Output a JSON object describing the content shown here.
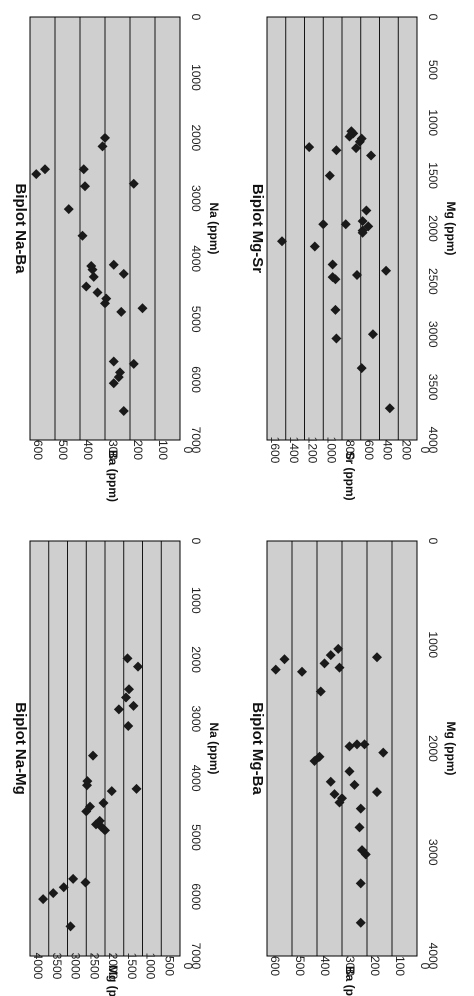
{
  "chart_data": [
    {
      "type": "scatter",
      "title": "Biplot Na-Mg",
      "xlabel": "Na (ppm)",
      "ylabel": "Mg (ppm)",
      "xlim": [
        0,
        7000
      ],
      "ylim": [
        0,
        4000
      ],
      "xticks": [
        "0",
        "1000",
        "2000",
        "3000",
        "4000",
        "5000",
        "6000",
        "7000"
      ],
      "yticks": [
        "0",
        "500",
        "1000",
        "1500",
        "2000",
        "2500",
        "3000",
        "3500",
        "4000"
      ],
      "grid": true,
      "points": [
        {
          "x": 6040,
          "y": 3650
        },
        {
          "x": 5940,
          "y": 3380
        },
        {
          "x": 6500,
          "y": 2920
        },
        {
          "x": 5840,
          "y": 3100
        },
        {
          "x": 5700,
          "y": 2850
        },
        {
          "x": 5760,
          "y": 2520
        },
        {
          "x": 4880,
          "y": 2000
        },
        {
          "x": 4820,
          "y": 2100
        },
        {
          "x": 4780,
          "y": 2240
        },
        {
          "x": 4720,
          "y": 2140
        },
        {
          "x": 4560,
          "y": 2500
        },
        {
          "x": 4480,
          "y": 2400
        },
        {
          "x": 4420,
          "y": 2040
        },
        {
          "x": 4220,
          "y": 1820
        },
        {
          "x": 4180,
          "y": 1160
        },
        {
          "x": 4120,
          "y": 2480
        },
        {
          "x": 4050,
          "y": 2470
        },
        {
          "x": 3620,
          "y": 2320
        },
        {
          "x": 3120,
          "y": 1380
        },
        {
          "x": 2840,
          "y": 1630
        },
        {
          "x": 2780,
          "y": 1240
        },
        {
          "x": 2640,
          "y": 1440
        },
        {
          "x": 2500,
          "y": 1360
        },
        {
          "x": 2120,
          "y": 1120
        },
        {
          "x": 1980,
          "y": 1400
        }
      ]
    },
    {
      "type": "scatter",
      "title": "Biplot Na-Ba",
      "xlabel": "Na (ppm)",
      "ylabel": "Ba (ppm)",
      "xlim": [
        0,
        7000
      ],
      "ylim": [
        0,
        600
      ],
      "xticks": [
        "0",
        "1000",
        "2000",
        "3000",
        "4000",
        "5000",
        "6000",
        "7000"
      ],
      "yticks": [
        "0",
        "100",
        "200",
        "300",
        "400",
        "500",
        "600"
      ],
      "grid": true,
      "points": [
        {
          "x": 6520,
          "y": 225
        },
        {
          "x": 6060,
          "y": 265
        },
        {
          "x": 5960,
          "y": 245
        },
        {
          "x": 5880,
          "y": 240
        },
        {
          "x": 5700,
          "y": 265
        },
        {
          "x": 5740,
          "y": 185
        },
        {
          "x": 4820,
          "y": 150
        },
        {
          "x": 4880,
          "y": 235
        },
        {
          "x": 4740,
          "y": 300
        },
        {
          "x": 4660,
          "y": 295
        },
        {
          "x": 4560,
          "y": 330
        },
        {
          "x": 4460,
          "y": 375
        },
        {
          "x": 4300,
          "y": 345
        },
        {
          "x": 4250,
          "y": 225
        },
        {
          "x": 4180,
          "y": 350
        },
        {
          "x": 4120,
          "y": 355
        },
        {
          "x": 4100,
          "y": 265
        },
        {
          "x": 3620,
          "y": 390
        },
        {
          "x": 3180,
          "y": 445
        },
        {
          "x": 2800,
          "y": 380
        },
        {
          "x": 2760,
          "y": 185
        },
        {
          "x": 2600,
          "y": 575
        },
        {
          "x": 2520,
          "y": 540
        },
        {
          "x": 2520,
          "y": 385
        },
        {
          "x": 2140,
          "y": 310
        },
        {
          "x": 2000,
          "y": 300
        }
      ]
    },
    {
      "type": "scatter",
      "title": "Biplot Mg-Ba",
      "xlabel": "Mg (ppm)",
      "ylabel": "Ba (ppm)",
      "xlim": [
        0,
        4000
      ],
      "ylim": [
        0,
        600
      ],
      "xticks": [
        "0",
        "1000",
        "2000",
        "3000",
        "4000"
      ],
      "yticks": [
        "0",
        "100",
        "200",
        "300",
        "400",
        "500",
        "600"
      ],
      "grid": true,
      "points": [
        {
          "x": 3680,
          "y": 225
        },
        {
          "x": 3300,
          "y": 225
        },
        {
          "x": 3020,
          "y": 205
        },
        {
          "x": 2980,
          "y": 220
        },
        {
          "x": 2760,
          "y": 230
        },
        {
          "x": 2580,
          "y": 225
        },
        {
          "x": 2520,
          "y": 310
        },
        {
          "x": 2480,
          "y": 300
        },
        {
          "x": 2440,
          "y": 330
        },
        {
          "x": 2420,
          "y": 160
        },
        {
          "x": 2350,
          "y": 250
        },
        {
          "x": 2320,
          "y": 345
        },
        {
          "x": 2220,
          "y": 270
        },
        {
          "x": 2120,
          "y": 410
        },
        {
          "x": 2080,
          "y": 390
        },
        {
          "x": 2040,
          "y": 135
        },
        {
          "x": 1980,
          "y": 270
        },
        {
          "x": 1960,
          "y": 240
        },
        {
          "x": 1960,
          "y": 210
        },
        {
          "x": 1450,
          "y": 385
        },
        {
          "x": 1260,
          "y": 460
        },
        {
          "x": 1240,
          "y": 565
        },
        {
          "x": 1220,
          "y": 310
        },
        {
          "x": 1180,
          "y": 370
        },
        {
          "x": 1140,
          "y": 530
        },
        {
          "x": 1120,
          "y": 160
        },
        {
          "x": 1100,
          "y": 345
        },
        {
          "x": 1040,
          "y": 315
        }
      ]
    },
    {
      "type": "scatter",
      "title": "Biplot Mg-Sr",
      "xlabel": "Mg (ppm)",
      "ylabel": "Sr (ppm)",
      "xlim": [
        0,
        4000
      ],
      "ylim": [
        0,
        1600
      ],
      "xticks": [
        "0",
        "500",
        "1000",
        "1500",
        "2000",
        "2500",
        "3000",
        "3500",
        "4000"
      ],
      "yticks": [
        "0",
        "200",
        "400",
        "600",
        "800",
        "1000",
        "1200",
        "1400",
        "1600"
      ],
      "grid": true,
      "points": [
        {
          "x": 3700,
          "y": 290
        },
        {
          "x": 3320,
          "y": 590
        },
        {
          "x": 3040,
          "y": 860
        },
        {
          "x": 3000,
          "y": 470
        },
        {
          "x": 2770,
          "y": 870
        },
        {
          "x": 2480,
          "y": 870
        },
        {
          "x": 2460,
          "y": 900
        },
        {
          "x": 2440,
          "y": 640
        },
        {
          "x": 2400,
          "y": 330
        },
        {
          "x": 2340,
          "y": 900
        },
        {
          "x": 2170,
          "y": 1090
        },
        {
          "x": 2120,
          "y": 1440
        },
        {
          "x": 2040,
          "y": 580
        },
        {
          "x": 2020,
          "y": 580
        },
        {
          "x": 1980,
          "y": 520
        },
        {
          "x": 1960,
          "y": 1000
        },
        {
          "x": 1960,
          "y": 760
        },
        {
          "x": 1930,
          "y": 580
        },
        {
          "x": 1830,
          "y": 540
        },
        {
          "x": 1500,
          "y": 930
        },
        {
          "x": 1310,
          "y": 490
        },
        {
          "x": 1260,
          "y": 860
        },
        {
          "x": 1240,
          "y": 650
        },
        {
          "x": 1230,
          "y": 1150
        },
        {
          "x": 1180,
          "y": 610
        },
        {
          "x": 1150,
          "y": 590
        },
        {
          "x": 1130,
          "y": 720
        },
        {
          "x": 1110,
          "y": 700
        },
        {
          "x": 1100,
          "y": 680
        },
        {
          "x": 1080,
          "y": 700
        }
      ]
    }
  ]
}
